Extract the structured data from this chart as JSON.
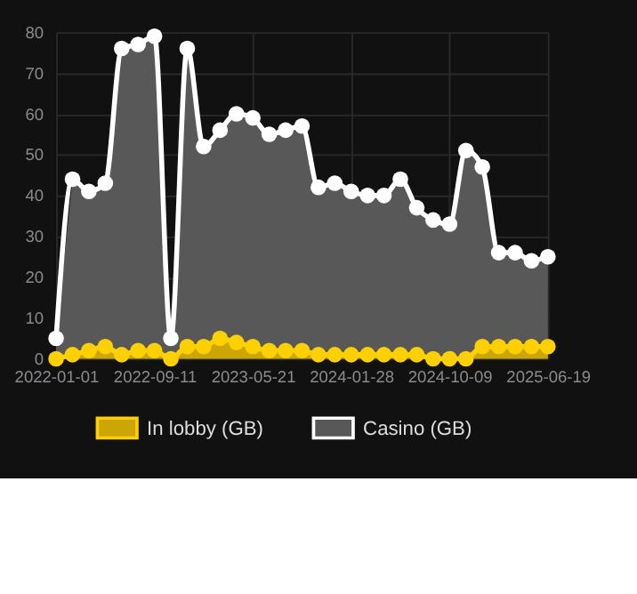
{
  "chart_data": {
    "type": "area",
    "categories": [
      "2022-01-01",
      null,
      null,
      null,
      null,
      null,
      "2022-09-11",
      null,
      null,
      null,
      null,
      null,
      "2023-05-21",
      null,
      null,
      null,
      null,
      null,
      "2024-01-28",
      null,
      null,
      null,
      null,
      null,
      "2024-10-09",
      null,
      null,
      null,
      null,
      null,
      "2025-06-19"
    ],
    "series": [
      {
        "name": "In lobby (GB)",
        "color": "#ffd000",
        "values": [
          0,
          1,
          2,
          3,
          1,
          2,
          2,
          0,
          3,
          3,
          5,
          4,
          3,
          2,
          2,
          2,
          1,
          1,
          1,
          1,
          1,
          1,
          1,
          0,
          0,
          0,
          3,
          3,
          3,
          3,
          3
        ]
      },
      {
        "name": "Casino (GB)",
        "color": "#ffffff",
        "values": [
          5,
          44,
          41,
          43,
          76,
          77,
          79,
          5,
          76,
          52,
          56,
          60,
          59,
          55,
          56,
          57,
          42,
          43,
          41,
          40,
          40,
          44,
          37,
          34,
          33,
          51,
          47,
          26,
          26,
          24,
          25
        ]
      }
    ],
    "ylim": [
      0,
      80
    ],
    "yticks": [
      0,
      10,
      20,
      30,
      40,
      50,
      60,
      70,
      80
    ],
    "grid": true,
    "legend": "bottom",
    "marker": "circle"
  }
}
